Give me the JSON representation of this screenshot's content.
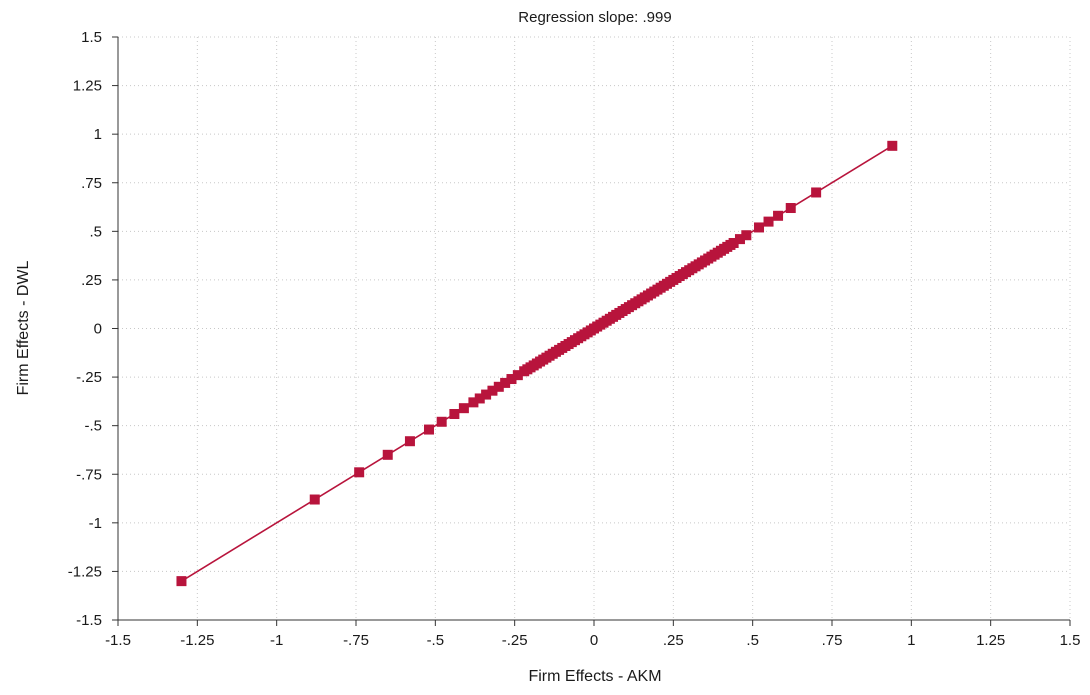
{
  "chart_data": {
    "type": "scatter",
    "title": "Regression slope: .999",
    "xlabel": "Firm Effects - AKM",
    "ylabel": "Firm Effects - DWL",
    "xlim": [
      -1.5,
      1.5
    ],
    "ylim": [
      -1.5,
      1.5
    ],
    "grid": true,
    "legend": "none",
    "colors": {
      "series": "#b8143c",
      "axis": "#333333",
      "grid": "#c8c8c8"
    },
    "x_ticks": [
      -1.5,
      -1.25,
      -1,
      -0.75,
      -0.5,
      -0.25,
      0,
      0.25,
      0.5,
      0.75,
      1,
      1.25,
      1.5
    ],
    "x_tick_labels": [
      "-1.5",
      "-1.25",
      "-1",
      "-.75",
      "-.5",
      "-.25",
      "0",
      ".25",
      ".5",
      ".75",
      "1",
      "1.25",
      "1.5"
    ],
    "y_ticks": [
      1.5,
      1.25,
      1,
      0.75,
      0.5,
      0.25,
      0,
      -0.25,
      -0.5,
      -0.75,
      -1,
      -1.25,
      -1.5
    ],
    "y_tick_labels": [
      "1.5",
      "1.25",
      "1",
      ".75",
      ".5",
      ".25",
      "0",
      "-.25",
      "-.5",
      "-.75",
      "-1",
      "-1.25",
      "-1.5"
    ],
    "fit_line": {
      "x": [
        -1.3,
        0.94
      ],
      "y": [
        -1.3,
        0.94
      ]
    },
    "series": [
      {
        "x": [
          -1.3,
          -0.88,
          -0.74,
          -0.65,
          -0.58,
          -0.52,
          -0.48,
          -0.44,
          -0.41,
          -0.38,
          -0.36,
          -0.34,
          -0.32,
          -0.3,
          -0.28,
          -0.26,
          -0.24,
          -0.22,
          -0.21,
          -0.2,
          -0.19,
          -0.18,
          -0.17,
          -0.16,
          -0.15,
          -0.14,
          -0.13,
          -0.12,
          -0.11,
          -0.1,
          -0.09,
          -0.08,
          -0.07,
          -0.06,
          -0.05,
          -0.04,
          -0.03,
          -0.02,
          -0.01,
          0.0,
          0.01,
          0.02,
          0.03,
          0.04,
          0.05,
          0.06,
          0.07,
          0.08,
          0.09,
          0.1,
          0.11,
          0.12,
          0.13,
          0.14,
          0.15,
          0.16,
          0.17,
          0.18,
          0.19,
          0.2,
          0.21,
          0.22,
          0.23,
          0.24,
          0.25,
          0.26,
          0.27,
          0.28,
          0.29,
          0.3,
          0.31,
          0.32,
          0.33,
          0.34,
          0.35,
          0.36,
          0.37,
          0.38,
          0.39,
          0.4,
          0.41,
          0.42,
          0.43,
          0.44,
          0.46,
          0.48,
          0.52,
          0.55,
          0.58,
          0.62,
          0.7,
          0.94
        ],
        "y": [
          -1.3,
          -0.88,
          -0.74,
          -0.65,
          -0.58,
          -0.52,
          -0.48,
          -0.44,
          -0.41,
          -0.38,
          -0.36,
          -0.34,
          -0.32,
          -0.3,
          -0.28,
          -0.26,
          -0.24,
          -0.22,
          -0.21,
          -0.2,
          -0.19,
          -0.18,
          -0.17,
          -0.16,
          -0.15,
          -0.14,
          -0.13,
          -0.12,
          -0.11,
          -0.1,
          -0.09,
          -0.08,
          -0.07,
          -0.06,
          -0.05,
          -0.04,
          -0.03,
          -0.02,
          -0.01,
          0.0,
          0.01,
          0.02,
          0.03,
          0.04,
          0.05,
          0.06,
          0.07,
          0.08,
          0.09,
          0.1,
          0.11,
          0.12,
          0.13,
          0.14,
          0.15,
          0.16,
          0.17,
          0.18,
          0.19,
          0.2,
          0.21,
          0.22,
          0.23,
          0.24,
          0.25,
          0.26,
          0.27,
          0.28,
          0.29,
          0.3,
          0.31,
          0.32,
          0.33,
          0.34,
          0.35,
          0.36,
          0.37,
          0.38,
          0.39,
          0.4,
          0.41,
          0.42,
          0.43,
          0.44,
          0.46,
          0.48,
          0.52,
          0.55,
          0.58,
          0.62,
          0.7,
          0.94
        ]
      }
    ]
  }
}
